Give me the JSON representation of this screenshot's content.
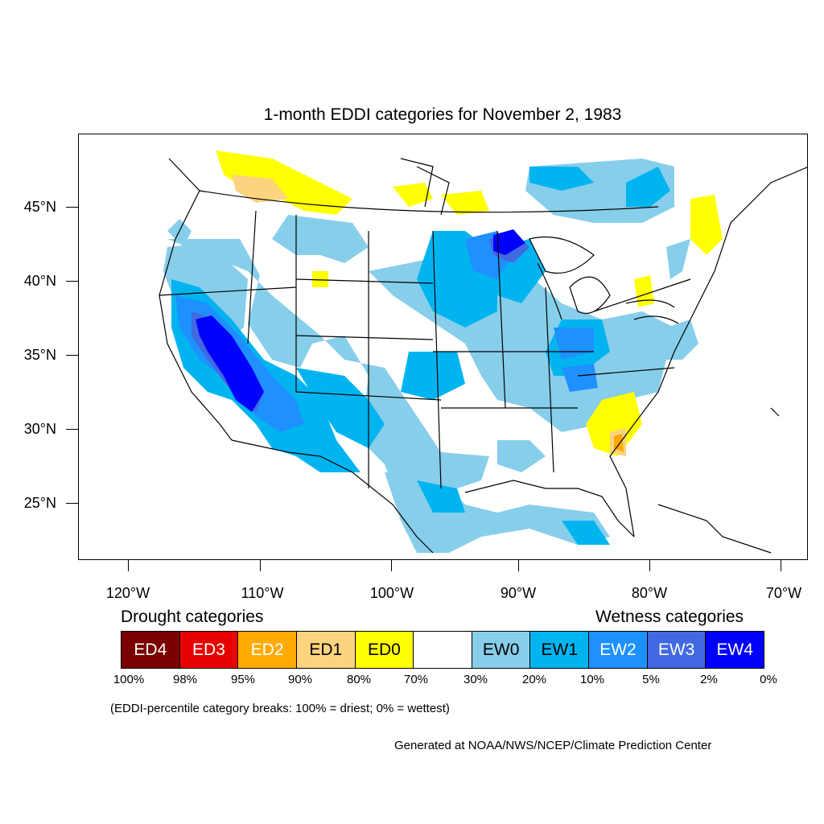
{
  "title": "1-month EDDI categories for November 2, 1983",
  "latitude_labels": [
    "45°N",
    "40°N",
    "35°N",
    "30°N",
    "25°N"
  ],
  "longitude_labels": [
    "120°W",
    "110°W",
    "100°W",
    "90°W",
    "80°W",
    "70°W"
  ],
  "legend": {
    "drought_title": "Drought categories",
    "wetness_title": "Wetness categories",
    "categories": [
      {
        "label": "ED4",
        "color": "#7a0000",
        "text_color": "#ffffff"
      },
      {
        "label": "ED3",
        "color": "#e60000",
        "text_color": "#ffffff"
      },
      {
        "label": "ED2",
        "color": "#ffaa00",
        "text_color": "#ffffff"
      },
      {
        "label": "ED1",
        "color": "#fcd37f",
        "text_color": "#000000"
      },
      {
        "label": "ED0",
        "color": "#ffff00",
        "text_color": "#000000"
      },
      {
        "label": "",
        "color": "#ffffff",
        "text_color": "#000000"
      },
      {
        "label": "EW0",
        "color": "#87ceeb",
        "text_color": "#000000"
      },
      {
        "label": "EW1",
        "color": "#00b4f0",
        "text_color": "#000000"
      },
      {
        "label": "EW2",
        "color": "#1e90ff",
        "text_color": "#ffffff"
      },
      {
        "label": "EW3",
        "color": "#4169e1",
        "text_color": "#ffffff"
      },
      {
        "label": "EW4",
        "color": "#0000ff",
        "text_color": "#ffffff"
      }
    ],
    "percentiles": [
      "100%",
      "98%",
      "95%",
      "90%",
      "80%",
      "70%",
      "30%",
      "20%",
      "10%",
      "5%",
      "2%",
      "0%"
    ]
  },
  "note": "(EDDI-percentile category breaks: 100% = driest; 0% = wettest)",
  "credit": "Generated at NOAA/NWS/NCEP/Climate Prediction Center"
}
